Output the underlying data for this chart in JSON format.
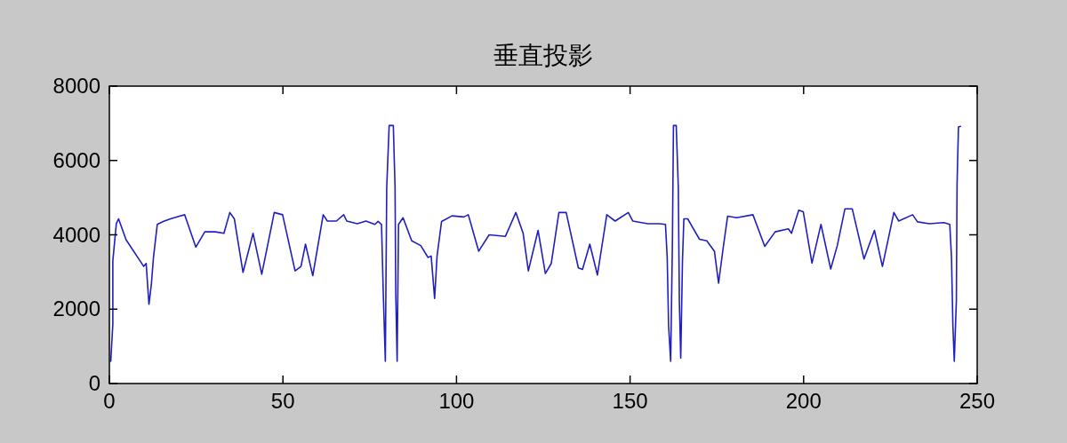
{
  "chart_data": {
    "type": "line",
    "title": "垂直投影",
    "x": [
      0.4,
      1,
      1,
      2,
      2.65,
      4.8,
      9.9,
      10.6,
      11.4,
      12.1,
      12.7,
      13.8,
      15.5,
      17.6,
      20.2,
      21.7,
      24.9,
      27.5,
      30.5,
      33,
      34.7,
      36,
      38.5,
      41.4,
      43.9,
      47.5,
      49.9,
      53.5,
      55.2,
      56.5,
      58.6,
      61.6,
      62.8,
      65.4,
      67.5,
      68.4,
      71.4,
      73.9,
      76.5,
      77.4,
      78.4,
      78.9,
      79.5,
      79.9,
      80.6,
      81.8,
      82.3,
      82.5,
      82.9,
      83.3,
      84.6,
      87.1,
      89.7,
      91.8,
      92.7,
      93.7,
      94.4,
      95.7,
      98.7,
      102.1,
      103.4,
      106.4,
      109.4,
      114.1,
      117.1,
      119.2,
      120.7,
      123.5,
      125.6,
      127.3,
      129.5,
      131.6,
      135.1,
      136.3,
      138.4,
      140.6,
      143.3,
      145.7,
      149.5,
      150.8,
      155.1,
      158.5,
      160.2,
      160.7,
      161.1,
      161.7,
      162.2,
      162.5,
      163.3,
      163.9,
      164.2,
      164.6,
      165.1,
      165.5,
      166.6,
      170,
      172.1,
      174.3,
      175.5,
      176.8,
      178.1,
      180.7,
      185.4,
      188.8,
      191.8,
      195.6,
      196.5,
      198.6,
      199.9,
      202.4,
      205,
      207.8,
      209.7,
      211.9,
      214,
      217.4,
      220.4,
      222.7,
      226,
      227.4,
      231.4,
      232.8,
      236.2,
      240.4,
      242.1,
      242.6,
      243,
      243.4,
      244,
      244.2,
      244.6,
      245.2
    ],
    "series": [
      {
        "color": "#1f1fc0",
        "values": [
          600,
          1600,
          3300,
          4300,
          4430,
          3870,
          3150,
          3230,
          2130,
          2670,
          3390,
          4280,
          4360,
          4430,
          4500,
          4540,
          3670,
          4080,
          4080,
          4040,
          4600,
          4430,
          2990,
          4040,
          2940,
          4600,
          4540,
          3030,
          3150,
          3750,
          2900,
          4540,
          4370,
          4370,
          4540,
          4370,
          4300,
          4370,
          4280,
          4360,
          4280,
          2440,
          600,
          5270,
          6940,
          6940,
          5270,
          2440,
          600,
          4280,
          4460,
          3840,
          3710,
          3390,
          3430,
          2290,
          3430,
          4360,
          4510,
          4480,
          4540,
          3560,
          4000,
          3960,
          4600,
          4040,
          3030,
          4120,
          2960,
          3230,
          4600,
          4600,
          3110,
          3070,
          3750,
          2920,
          4540,
          4370,
          4600,
          4370,
          4300,
          4300,
          4280,
          3390,
          1560,
          600,
          3800,
          6940,
          6940,
          5270,
          2200,
          680,
          3310,
          4430,
          4430,
          3880,
          3840,
          3560,
          2700,
          3630,
          4500,
          4460,
          4540,
          3690,
          4080,
          4160,
          4040,
          4660,
          4620,
          3240,
          4280,
          3080,
          3710,
          4700,
          4700,
          3350,
          4120,
          3150,
          4600,
          4370,
          4540,
          4350,
          4300,
          4330,
          4280,
          3390,
          1560,
          600,
          2230,
          5360,
          6900,
          6920
        ]
      }
    ],
    "xlim": [
      0,
      250
    ],
    "ylim": [
      0,
      8000
    ],
    "xticks": [
      0,
      50,
      100,
      150,
      200,
      250
    ],
    "yticks": [
      0,
      2000,
      4000,
      6000,
      8000
    ]
  }
}
